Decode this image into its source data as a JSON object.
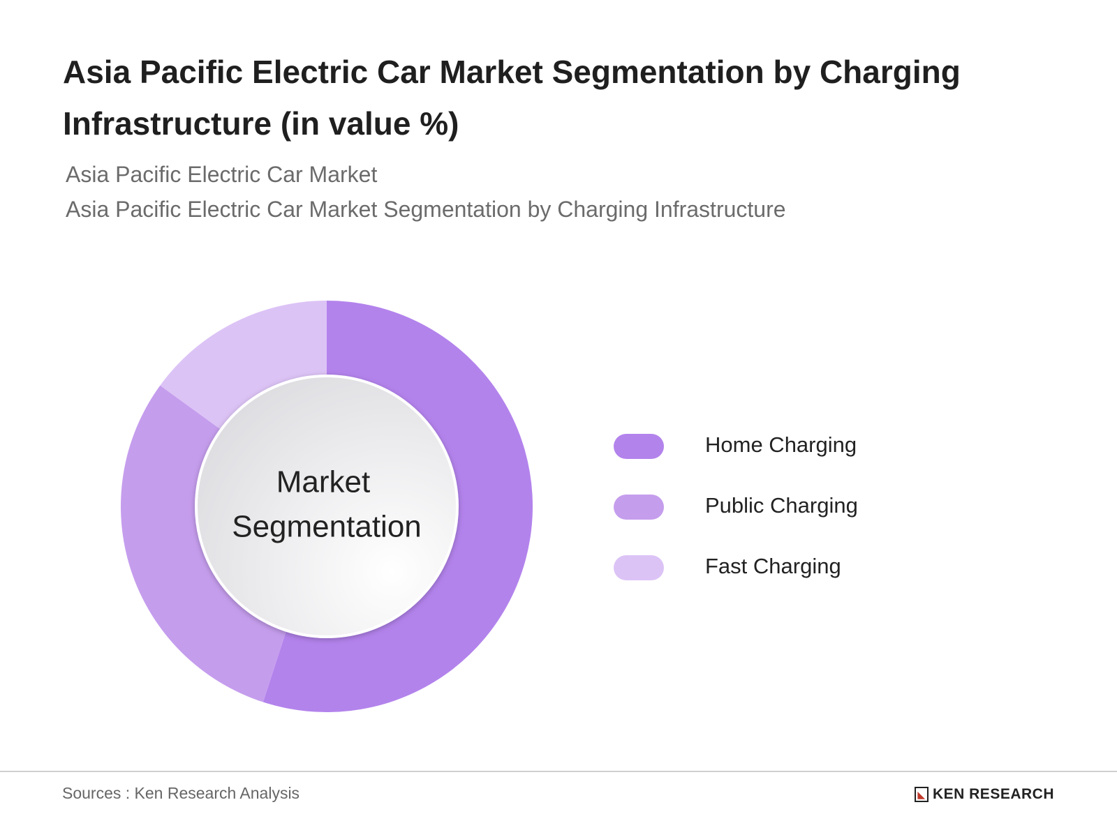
{
  "chart_data": {
    "type": "donut",
    "title": "Asia Pacific Electric Car Market Segmentation by Charging Infrastructure (in value %)",
    "subtitles": [
      "Asia Pacific Electric Car Market",
      "Asia Pacific Electric Car Market Segmentation by Charging Infrastructure"
    ],
    "center_label": [
      "Market",
      "Segmentation"
    ],
    "categories": [
      "Home Charging",
      "Public Charging",
      "Fast Charging"
    ],
    "values": [
      55,
      30,
      15
    ],
    "colors": [
      "#b383ec",
      "#c59ded",
      "#dcc3f6"
    ],
    "source": "Sources : Ken Research Analysis",
    "brand": "KEN RESEARCH"
  }
}
